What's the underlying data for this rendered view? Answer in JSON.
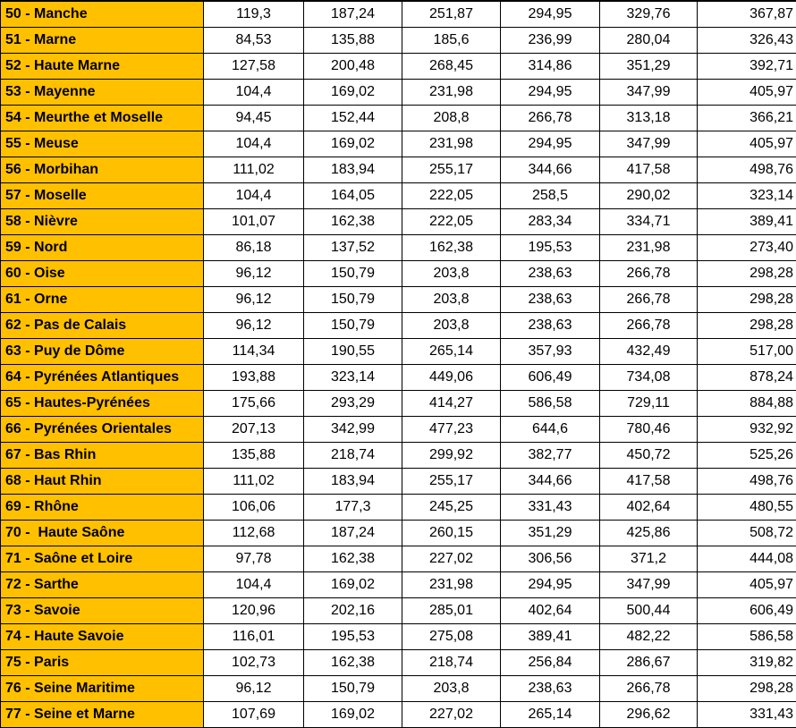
{
  "table": {
    "colors": {
      "row_header_background": "#FFC000",
      "grid_line": "#000000",
      "text": "#000000",
      "cell_background": "#FFFFFF"
    },
    "rows": [
      {
        "label": "50 - Manche",
        "values": [
          "119,3",
          "187,24",
          "251,87",
          "294,95",
          "329,76",
          "367,87"
        ]
      },
      {
        "label": "51 - Marne",
        "values": [
          "84,53",
          "135,88",
          "185,6",
          "236,99",
          "280,04",
          "326,43"
        ]
      },
      {
        "label": "52 - Haute Marne",
        "values": [
          "127,58",
          "200,48",
          "268,45",
          "314,86",
          "351,29",
          "392,71"
        ]
      },
      {
        "label": "53 - Mayenne",
        "values": [
          "104,4",
          "169,02",
          "231,98",
          "294,95",
          "347,99",
          "405,97"
        ]
      },
      {
        "label": "54 - Meurthe et Moselle",
        "values": [
          "94,45",
          "152,44",
          "208,8",
          "266,78",
          "313,18",
          "366,21"
        ]
      },
      {
        "label": "55 - Meuse",
        "values": [
          "104,4",
          "169,02",
          "231,98",
          "294,95",
          "347,99",
          "405,97"
        ]
      },
      {
        "label": "56 - Morbihan",
        "values": [
          "111,02",
          "183,94",
          "255,17",
          "344,66",
          "417,58",
          "498,76"
        ]
      },
      {
        "label": "57 - Moselle",
        "values": [
          "104,4",
          "164,05",
          "222,05",
          "258,5",
          "290,02",
          "323,14"
        ]
      },
      {
        "label": "58 - Nièvre",
        "values": [
          "101,07",
          "162,38",
          "222,05",
          "283,34",
          "334,71",
          "389,41"
        ]
      },
      {
        "label": "59 - Nord",
        "values": [
          "86,18",
          "137,52",
          "162,38",
          "195,53",
          "231,98",
          "273,40"
        ]
      },
      {
        "label": "60 - Oise",
        "values": [
          "96,12",
          "150,79",
          "203,8",
          "238,63",
          "266,78",
          "298,28"
        ]
      },
      {
        "label": "61 - Orne",
        "values": [
          "96,12",
          "150,79",
          "203,8",
          "238,63",
          "266,78",
          "298,28"
        ]
      },
      {
        "label": "62 - Pas de Calais",
        "values": [
          "96,12",
          "150,79",
          "203,8",
          "238,63",
          "266,78",
          "298,28"
        ]
      },
      {
        "label": "63 - Puy de Dôme",
        "values": [
          "114,34",
          "190,55",
          "265,14",
          "357,93",
          "432,49",
          "517,00"
        ]
      },
      {
        "label": "64 - Pyrénées Atlantiques",
        "values": [
          "193,88",
          "323,14",
          "449,06",
          "606,49",
          "734,08",
          "878,24"
        ]
      },
      {
        "label": "65 - Hautes-Pyrénées",
        "values": [
          "175,66",
          "293,29",
          "414,27",
          "586,58",
          "729,11",
          "884,88"
        ]
      },
      {
        "label": "66 - Pyrénées Orientales",
        "values": [
          "207,13",
          "342,99",
          "477,23",
          "644,6",
          "780,46",
          "932,92"
        ]
      },
      {
        "label": "67 - Bas Rhin",
        "values": [
          "135,88",
          "218,74",
          "299,92",
          "382,77",
          "450,72",
          "525,26"
        ]
      },
      {
        "label": "68 - Haut Rhin",
        "values": [
          "111,02",
          "183,94",
          "255,17",
          "344,66",
          "417,58",
          "498,76"
        ]
      },
      {
        "label": "69 - Rhône",
        "values": [
          "106,06",
          "177,3",
          "245,25",
          "331,43",
          "402,64",
          "480,55"
        ]
      },
      {
        "label": "70 -  Haute Saône",
        "values": [
          "112,68",
          "187,24",
          "260,15",
          "351,29",
          "425,86",
          "508,72"
        ]
      },
      {
        "label": "71 - Saône et Loire",
        "values": [
          "97,78",
          "162,38",
          "227,02",
          "306,56",
          "371,2",
          "444,08"
        ]
      },
      {
        "label": "72 - Sarthe",
        "values": [
          "104,4",
          "169,02",
          "231,98",
          "294,95",
          "347,99",
          "405,97"
        ]
      },
      {
        "label": "73 - Savoie",
        "values": [
          "120,96",
          "202,16",
          "285,01",
          "402,64",
          "500,44",
          "606,49"
        ]
      },
      {
        "label": "74 - Haute Savoie",
        "values": [
          "116,01",
          "195,53",
          "275,08",
          "389,41",
          "482,22",
          "586,58"
        ]
      },
      {
        "label": "75 - Paris",
        "values": [
          "102,73",
          "162,38",
          "218,74",
          "256,84",
          "286,67",
          "319,82"
        ]
      },
      {
        "label": "76 - Seine Maritime",
        "values": [
          "96,12",
          "150,79",
          "203,8",
          "238,63",
          "266,78",
          "298,28"
        ]
      },
      {
        "label": "77 - Seine et Marne",
        "values": [
          "107,69",
          "169,02",
          "227,02",
          "265,14",
          "296,62",
          "331,43"
        ]
      }
    ]
  }
}
